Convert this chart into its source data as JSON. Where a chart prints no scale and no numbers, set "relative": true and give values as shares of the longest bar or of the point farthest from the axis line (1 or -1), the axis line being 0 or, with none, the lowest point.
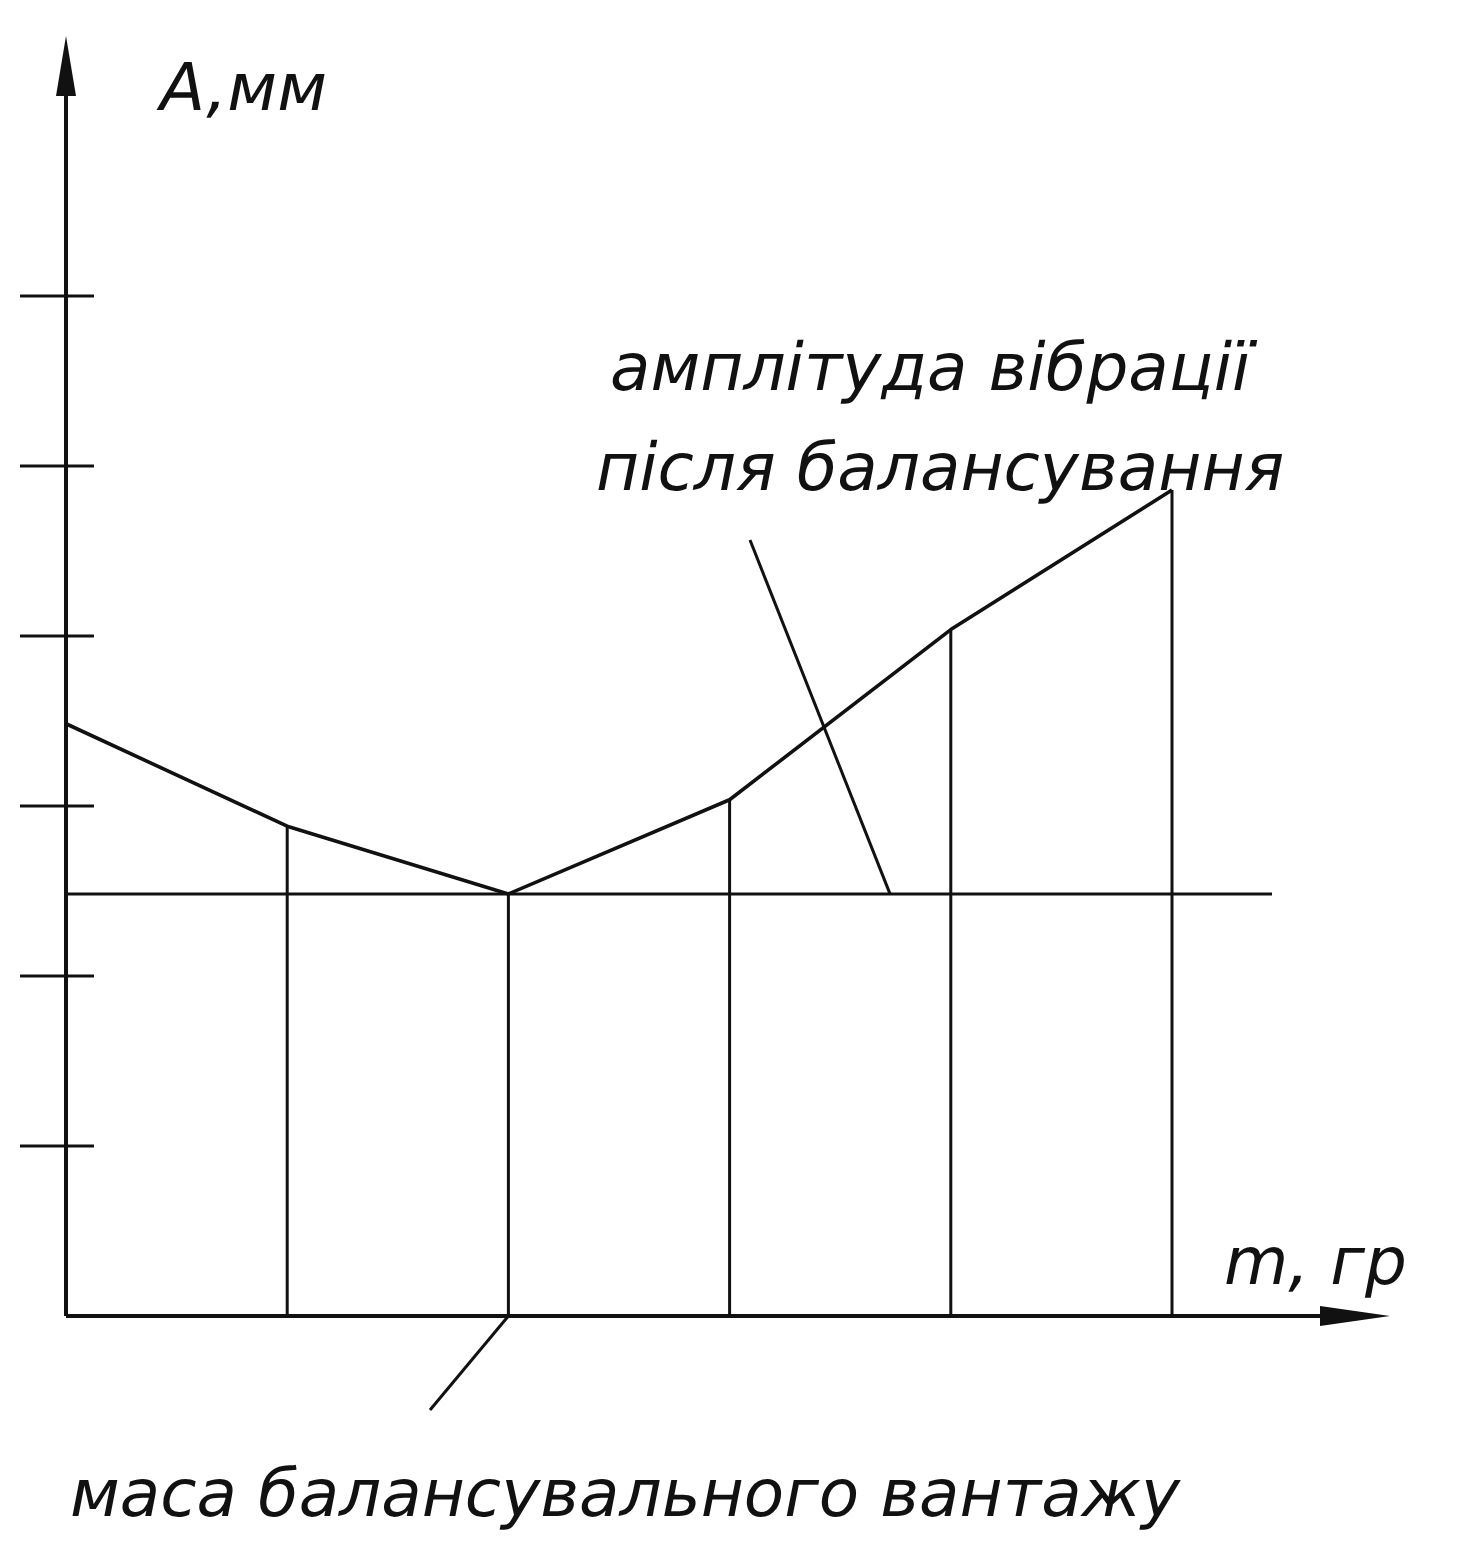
{
  "chart_data": {
    "type": "line",
    "xlabel": "m, гр",
    "relative": true,
    "categories": [
      null,
      null,
      null,
      null,
      null,
      null
    ],
    "series": [
      {
        "color": "#111111",
        "values": [
          0.717,
          0.593,
          0.511,
          0.625,
          0.831,
          1
        ]
      }
    ],
    "ref_lines": [
      {
        "axis": "y",
        "value": 0.511,
        "label": "амплітуда вібрації\nпісля балансування",
        "color": "#111111"
      }
    ],
    "annotations": [
      "A,мм",
      "маса балансувального вантажу"
    ],
    "marker": "none",
    "line_style": "solid"
  }
}
